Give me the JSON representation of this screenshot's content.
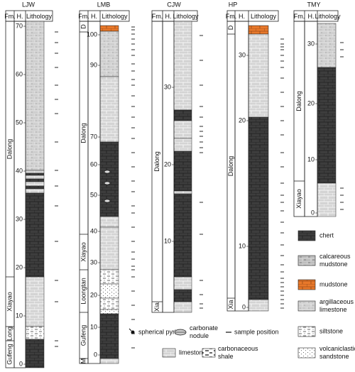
{
  "columns": [
    {
      "name": "LJW",
      "header": [
        "Fm.",
        "H.",
        "Lithology"
      ],
      "formations": [
        "Dalong",
        "Xiayao",
        "Long",
        "Gufeng"
      ],
      "heights": [
        70,
        60,
        50,
        40,
        30,
        20,
        10,
        0
      ]
    },
    {
      "name": "LMB",
      "header": [
        "Fm.",
        "H.",
        "Lithology"
      ],
      "formations": [
        "D",
        "Dalong",
        "Xiayao",
        "Loongtan",
        "Gufeng",
        "M"
      ],
      "heights": [
        100,
        90,
        70,
        60,
        50,
        40,
        30,
        20,
        10,
        0
      ]
    },
    {
      "name": "CJW",
      "header": [
        "Fm.",
        "H.",
        "Lithology"
      ],
      "formations": [
        "Dalong",
        "Xia"
      ],
      "heights": [
        30,
        20,
        10
      ]
    },
    {
      "name": "HP",
      "header": [
        "Fm.",
        "H.",
        "Lithology"
      ],
      "formations": [
        "D",
        "Dalong",
        "Xia"
      ],
      "heights": [
        30,
        20,
        10,
        0
      ]
    },
    {
      "name": "TMY",
      "header": [
        "Fm.",
        "H.",
        "Lithology"
      ],
      "formations": [
        "Dalong",
        "Xiayao"
      ],
      "heights": [
        30,
        20,
        10,
        0
      ]
    }
  ],
  "legend": {
    "side": [
      [
        "chert"
      ],
      [
        "calcareous",
        "mudstone"
      ],
      [
        "mudstone"
      ],
      [
        "argillaceous",
        "limestone"
      ],
      [
        "siltstone"
      ],
      [
        "volcaniclastic",
        "sandstone"
      ]
    ],
    "bottom": [
      [
        "spherical pyrite"
      ],
      [
        "carbonate",
        "nodule"
      ],
      [
        "sample position"
      ],
      [
        "limestone"
      ],
      [
        "carbonaceous",
        "shale"
      ]
    ]
  }
}
